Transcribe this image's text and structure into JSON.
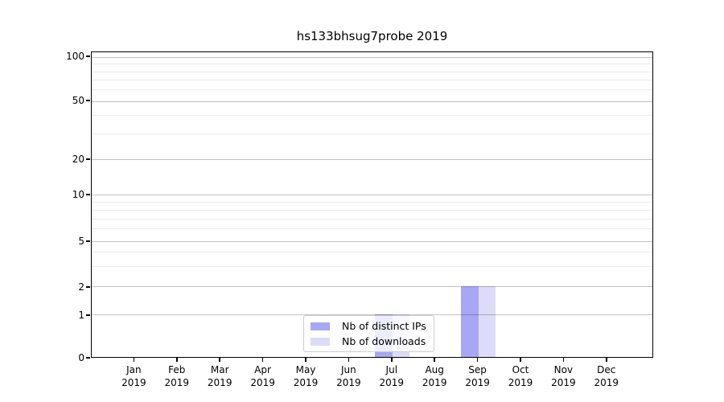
{
  "title": "hs133bhsug7probe 2019",
  "chart_data": {
    "type": "bar",
    "title": "hs133bhsug7probe 2019",
    "categories": [
      "Jan",
      "Feb",
      "Mar",
      "Apr",
      "May",
      "Jun",
      "Jul",
      "Aug",
      "Sep",
      "Oct",
      "Nov",
      "Dec"
    ],
    "year_label": "2019",
    "series": [
      {
        "name": "Nb of distinct IPs",
        "color": "#a7a7f3",
        "values": [
          0,
          0,
          0,
          0,
          0,
          0,
          1,
          0,
          2,
          0,
          0,
          0
        ]
      },
      {
        "name": "Nb of downloads",
        "color": "#dcdcf8",
        "values": [
          0,
          0,
          0,
          0,
          0,
          0,
          1,
          0,
          2,
          0,
          0,
          0
        ]
      }
    ],
    "xlabel": "",
    "ylabel": "",
    "y_axis": {
      "scale": "symlog-like",
      "ylim_bottom": 0,
      "major_ticks": [
        0,
        1,
        2,
        5,
        10,
        20,
        50,
        100
      ],
      "minor_ticks": [
        3,
        4,
        6,
        7,
        8,
        9,
        30,
        40,
        60,
        70,
        80,
        90
      ],
      "tick_position_pct": {
        "0": 0,
        "1": 13.9,
        "2": 23.1,
        "5": 38.1,
        "10": 53.3,
        "20": 64.8,
        "50": 84.0,
        "100": 98.4
      }
    },
    "grid": true,
    "legend": {
      "position": "lower-center-inside",
      "items": [
        "Nb of distinct IPs",
        "Nb of downloads"
      ]
    }
  },
  "colors": {
    "bar_distinct_ips": "#a7a7f3",
    "bar_downloads": "#dcdcf8",
    "grid_major": "#c2c2c2",
    "grid_minor": "#ebebeb",
    "spine": "#000000",
    "background": "#ffffff"
  }
}
